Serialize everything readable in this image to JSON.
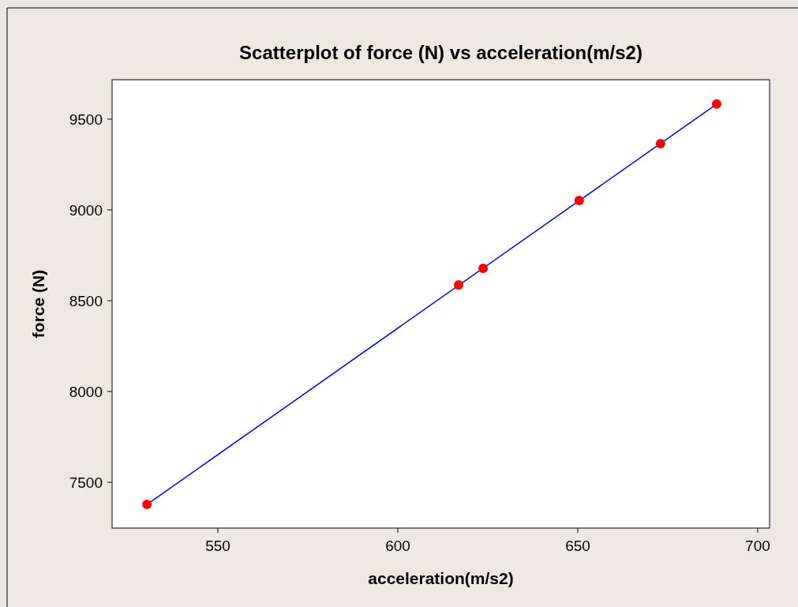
{
  "chart_data": {
    "type": "scatter",
    "title": "Scatterplot of force (N) vs acceleration(m/s2)",
    "xlabel": "acceleration(m/s2)",
    "ylabel": "force (N)",
    "xlim": [
      520.6,
      703.3
    ],
    "ylim": [
      7248,
      9717
    ],
    "xticks": [
      550,
      600,
      650,
      700
    ],
    "yticks": [
      7500,
      8000,
      8500,
      9000,
      9500
    ],
    "grid": false,
    "marker": "circle",
    "series": [
      {
        "color": "#ff0000",
        "x": [
          530.3,
          616.9,
          623.7,
          650.4,
          673,
          688.6
        ],
        "values": [
          7378,
          8587,
          8678,
          9052,
          9365,
          9583
        ]
      },
      {
        "type": "line",
        "color": "#0000ff",
        "marker": "none",
        "line_style": "solid",
        "x": [
          530.3,
          688.6
        ],
        "values": [
          7378,
          9583
        ]
      }
    ]
  }
}
